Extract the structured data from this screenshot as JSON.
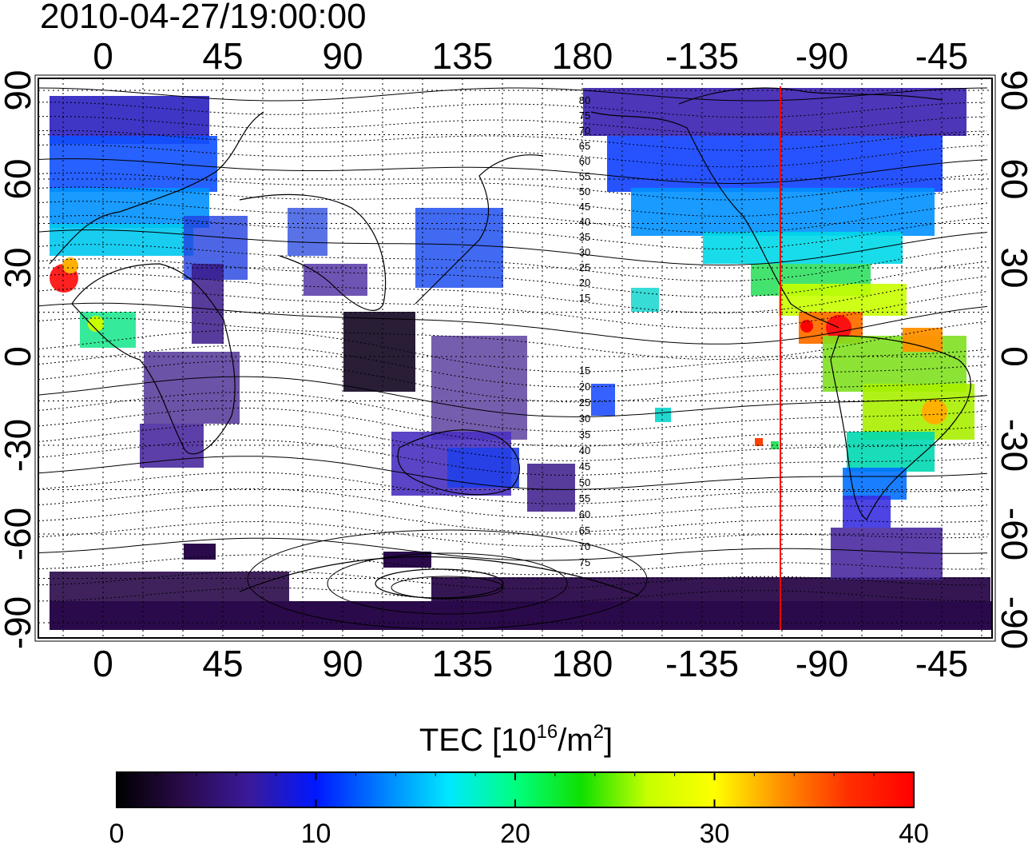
{
  "title": "2010-04-27/19:00:00",
  "map": {
    "lon_ticks_top": [
      "0",
      "45",
      "90",
      "135",
      "180",
      "-135",
      "-90",
      "-45"
    ],
    "lon_ticks_bottom": [
      "0",
      "45",
      "90",
      "135",
      "180",
      "-135",
      "-90",
      "-45"
    ],
    "lat_ticks_left": [
      "90",
      "60",
      "30",
      "0",
      "-30",
      "-60",
      "-90"
    ],
    "lat_ticks_right": [
      "90",
      "60",
      "30",
      "0",
      "-30",
      "-60",
      "-90"
    ],
    "mlat_labels_north": [
      "80",
      "75",
      "70",
      "65",
      "60",
      "55",
      "50",
      "45",
      "40",
      "35",
      "30",
      "25",
      "20",
      "15"
    ],
    "mlat_labels_south": [
      "15",
      "20",
      "25",
      "30",
      "35",
      "40",
      "45",
      "50",
      "55",
      "60",
      "65",
      "70",
      "75"
    ],
    "marker_line_color": "#ff0000"
  },
  "colorbar": {
    "title_main": "TEC  [10",
    "title_exp1": "16",
    "title_mid": "/m",
    "title_exp2": "2",
    "title_end": "]",
    "ticks": [
      "0",
      "10",
      "20",
      "30",
      "40"
    ],
    "range": [
      0,
      40
    ],
    "colormap": [
      "#000000",
      "#2a0a4a",
      "#3a1a9a",
      "#0018ff",
      "#0080ff",
      "#00e8ff",
      "#00ff80",
      "#10e000",
      "#c8ff00",
      "#ffff00",
      "#ff9000",
      "#ff3000",
      "#ff0000"
    ]
  }
}
